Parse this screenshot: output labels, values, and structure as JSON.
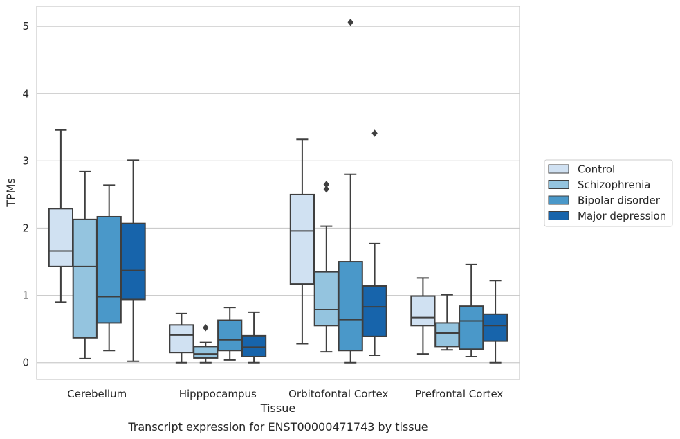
{
  "chart_data": {
    "type": "box",
    "title": "",
    "caption": "Transcript expression for ENST00000471743 by tissue",
    "xlabel": "Tissue",
    "ylabel": "TPMs",
    "ylim": [
      -0.25,
      5.3
    ],
    "yticks": [
      0,
      1,
      2,
      3,
      4,
      5
    ],
    "grid": "horizontal",
    "legend_position": "right",
    "categories": [
      "Cerebellum",
      "Hipppocampus",
      "Orbitofontal Cortex",
      "Prefrontal Cortex"
    ],
    "series": [
      {
        "name": "Control",
        "color": "#d0e1f2",
        "boxes": [
          {
            "whisker_low": 0.9,
            "q1": 1.43,
            "median": 1.66,
            "q3": 2.29,
            "whisker_high": 3.46,
            "outliers": []
          },
          {
            "whisker_low": 0.0,
            "q1": 0.15,
            "median": 0.41,
            "q3": 0.56,
            "whisker_high": 0.73,
            "outliers": []
          },
          {
            "whisker_low": 0.28,
            "q1": 1.17,
            "median": 1.96,
            "q3": 2.5,
            "whisker_high": 3.32,
            "outliers": []
          },
          {
            "whisker_low": 0.13,
            "q1": 0.55,
            "median": 0.67,
            "q3": 0.99,
            "whisker_high": 1.26,
            "outliers": []
          }
        ]
      },
      {
        "name": "Schizophrenia",
        "color": "#94c4df",
        "boxes": [
          {
            "whisker_low": 0.06,
            "q1": 0.37,
            "median": 1.43,
            "q3": 2.13,
            "whisker_high": 2.84,
            "outliers": []
          },
          {
            "whisker_low": 0.0,
            "q1": 0.07,
            "median": 0.13,
            "q3": 0.24,
            "whisker_high": 0.3,
            "outliers": [
              0.52
            ]
          },
          {
            "whisker_low": 0.16,
            "q1": 0.55,
            "median": 0.79,
            "q3": 1.35,
            "whisker_high": 2.03,
            "outliers": [
              2.58,
              2.65
            ]
          },
          {
            "whisker_low": 0.19,
            "q1": 0.24,
            "median": 0.44,
            "q3": 0.59,
            "whisker_high": 1.01,
            "outliers": []
          }
        ]
      },
      {
        "name": "Bipolar disorder",
        "color": "#4a98c9",
        "boxes": [
          {
            "whisker_low": 0.18,
            "q1": 0.59,
            "median": 0.98,
            "q3": 2.17,
            "whisker_high": 2.64,
            "outliers": []
          },
          {
            "whisker_low": 0.04,
            "q1": 0.18,
            "median": 0.34,
            "q3": 0.63,
            "whisker_high": 0.82,
            "outliers": []
          },
          {
            "whisker_low": 0.0,
            "q1": 0.18,
            "median": 0.64,
            "q3": 1.5,
            "whisker_high": 2.8,
            "outliers": [
              5.06
            ]
          },
          {
            "whisker_low": 0.09,
            "q1": 0.2,
            "median": 0.62,
            "q3": 0.84,
            "whisker_high": 1.46,
            "outliers": []
          }
        ]
      },
      {
        "name": "Major depression",
        "color": "#1764ab",
        "boxes": [
          {
            "whisker_low": 0.02,
            "q1": 0.94,
            "median": 1.37,
            "q3": 2.07,
            "whisker_high": 3.01,
            "outliers": []
          },
          {
            "whisker_low": 0.0,
            "q1": 0.09,
            "median": 0.23,
            "q3": 0.4,
            "whisker_high": 0.75,
            "outliers": []
          },
          {
            "whisker_low": 0.11,
            "q1": 0.39,
            "median": 0.83,
            "q3": 1.14,
            "whisker_high": 1.77,
            "outliers": [
              3.41
            ]
          },
          {
            "whisker_low": 0.0,
            "q1": 0.32,
            "median": 0.55,
            "q3": 0.72,
            "whisker_high": 1.22,
            "outliers": []
          }
        ]
      }
    ]
  }
}
